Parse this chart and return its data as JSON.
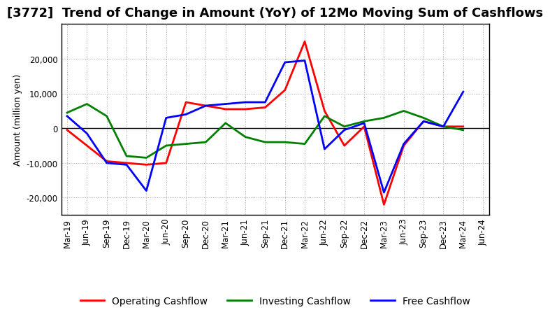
{
  "title": "[3772]  Trend of Change in Amount (YoY) of 12Mo Moving Sum of Cashflows",
  "ylabel": "Amount (million yen)",
  "x_labels": [
    "Mar-19",
    "Jun-19",
    "Sep-19",
    "Dec-19",
    "Mar-20",
    "Jun-20",
    "Sep-20",
    "Dec-20",
    "Mar-21",
    "Jun-21",
    "Sep-21",
    "Dec-21",
    "Mar-22",
    "Jun-22",
    "Sep-22",
    "Dec-22",
    "Mar-23",
    "Jun-23",
    "Sep-23",
    "Dec-23",
    "Mar-24",
    "Jun-24"
  ],
  "operating_cashflow": [
    -500,
    -5000,
    -9500,
    -10000,
    -10500,
    -10000,
    7500,
    6500,
    5500,
    5500,
    6000,
    11000,
    25000,
    5000,
    -5000,
    500,
    -22000,
    -5000,
    2000,
    500,
    500,
    null
  ],
  "investing_cashflow": [
    4500,
    7000,
    3500,
    -8000,
    -8500,
    -5000,
    -4500,
    -4000,
    1500,
    -2500,
    -4000,
    -4000,
    -4500,
    3500,
    500,
    2000,
    3000,
    5000,
    3000,
    500,
    -500,
    null
  ],
  "free_cashflow": [
    3500,
    -1500,
    -10000,
    -10500,
    -18000,
    3000,
    4000,
    6500,
    7000,
    7500,
    7500,
    19000,
    19500,
    -6000,
    -500,
    1500,
    -18500,
    -4500,
    2000,
    500,
    10500,
    null
  ],
  "operating_color": "#ff0000",
  "investing_color": "#008000",
  "free_color": "#0000ff",
  "ylim": [
    -25000,
    30000
  ],
  "yticks": [
    -20000,
    -10000,
    0,
    10000,
    20000
  ],
  "bg_color": "#ffffff",
  "plot_bg_color": "#ffffff",
  "grid_color": "#aaaaaa",
  "line_width": 2.0,
  "title_fontsize": 13,
  "legend_fontsize": 10,
  "tick_fontsize": 8.5
}
